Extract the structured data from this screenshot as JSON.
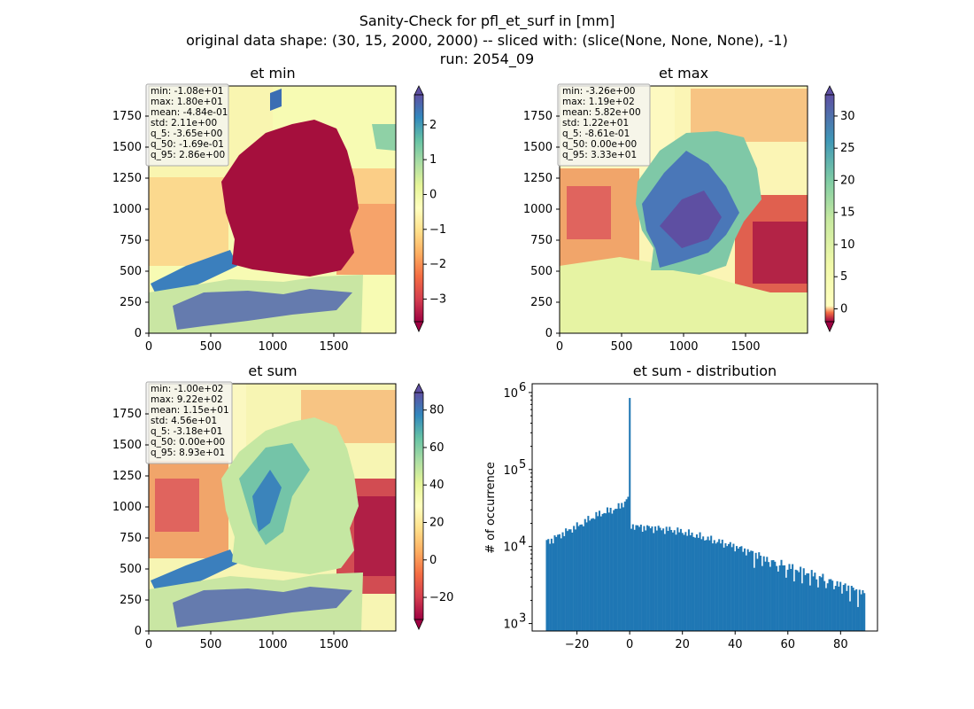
{
  "figure": {
    "title_lines": [
      "Sanity-Check for pfl_et_surf in [mm]",
      "original data shape: (30, 15, 2000, 2000) -- sliced with: (slice(None, None, None), -1)",
      "run: 2054_09"
    ]
  },
  "maps": [
    {
      "title": "et min",
      "x_ticks": [
        "0",
        "500",
        "1000",
        "1500"
      ],
      "y_ticks": [
        "0",
        "250",
        "500",
        "750",
        "1000",
        "1250",
        "1500",
        "1750"
      ],
      "colorbar": {
        "min": -3.65,
        "max": 2.86,
        "ticks": [
          "2",
          "1",
          "0",
          "−1",
          "−2",
          "−3"
        ],
        "tick_values": [
          2,
          1,
          0,
          -1,
          -2,
          -3
        ]
      },
      "stats": [
        "min: -1.08e+01",
        "max: 1.80e+01",
        "mean: -4.84e-01",
        "std: 2.11e+00",
        "q_5: -3.65e+00",
        "q_50: -1.69e-01",
        "q_95: 2.86e+00"
      ]
    },
    {
      "title": "et max",
      "x_ticks": [
        "0",
        "500",
        "1000",
        "1500"
      ],
      "y_ticks": [
        "0",
        "250",
        "500",
        "750",
        "1000",
        "1250",
        "1500",
        "1750"
      ],
      "colorbar": {
        "min": -2.0,
        "max": 33.3,
        "ticks": [
          "30",
          "25",
          "20",
          "15",
          "10",
          "5",
          "0"
        ],
        "tick_values": [
          30,
          25,
          20,
          15,
          10,
          5,
          0
        ]
      },
      "stats": [
        "min: -3.26e+00",
        "max: 1.19e+02",
        "mean: 5.82e+00",
        "std: 1.22e+01",
        "q_5: -8.61e-01",
        "q_50: 0.00e+00",
        "q_95: 3.33e+01"
      ]
    },
    {
      "title": "et sum",
      "x_ticks": [
        "0",
        "500",
        "1000",
        "1500"
      ],
      "y_ticks": [
        "0",
        "250",
        "500",
        "750",
        "1000",
        "1250",
        "1500",
        "1750"
      ],
      "colorbar": {
        "min": -31.8,
        "max": 89.3,
        "ticks": [
          "80",
          "60",
          "40",
          "20",
          "0",
          "−20"
        ],
        "tick_values": [
          80,
          60,
          40,
          20,
          0,
          -20
        ]
      },
      "stats": [
        "min: -1.00e+02",
        "max: 9.22e+02",
        "mean: 1.15e+01",
        "std: 4.56e+01",
        "q_5: -3.18e+01",
        "q_50: 0.00e+00",
        "q_95: 8.93e+01"
      ]
    }
  ],
  "chart_data": {
    "type": "bar",
    "title": "et sum - distribution",
    "ylabel": "# of occurrence",
    "xlabel": "",
    "y_scale": "log",
    "xlim": [
      -37,
      94
    ],
    "ylim": [
      800,
      1300000
    ],
    "x_ticks": [
      "−20",
      "0",
      "20",
      "40",
      "60",
      "80"
    ],
    "x_tick_values": [
      -20,
      0,
      20,
      40,
      60,
      80
    ],
    "y_ticks": [
      "10",
      "10",
      "10",
      "10"
    ],
    "y_tick_exponents": [
      "3",
      "4",
      "5",
      "6"
    ],
    "y_tick_values": [
      1000,
      10000,
      100000,
      1000000
    ],
    "bar_color": "#1f77b4",
    "bin_range": [
      -31.8,
      89.3
    ],
    "profile": [
      [
        -31.8,
        11500
      ],
      [
        -30,
        12000
      ],
      [
        -28,
        13200
      ],
      [
        -25,
        15000
      ],
      [
        -22,
        17000
      ],
      [
        -19,
        19000
      ],
      [
        -16,
        22000
      ],
      [
        -12,
        26000
      ],
      [
        -8,
        29000
      ],
      [
        -5,
        31000
      ],
      [
        -3,
        35000
      ],
      [
        -1.2,
        40000
      ],
      [
        -0.5,
        45000
      ],
      [
        0.5,
        19000
      ],
      [
        3,
        18000
      ],
      [
        8,
        17500
      ],
      [
        15,
        16500
      ],
      [
        20,
        15500
      ],
      [
        30,
        12500
      ],
      [
        40,
        10000
      ],
      [
        50,
        7500
      ],
      [
        60,
        5500
      ],
      [
        70,
        4300
      ],
      [
        80,
        3300
      ],
      [
        89.3,
        2400
      ]
    ],
    "spike": {
      "x": 0,
      "value": 850000
    }
  }
}
